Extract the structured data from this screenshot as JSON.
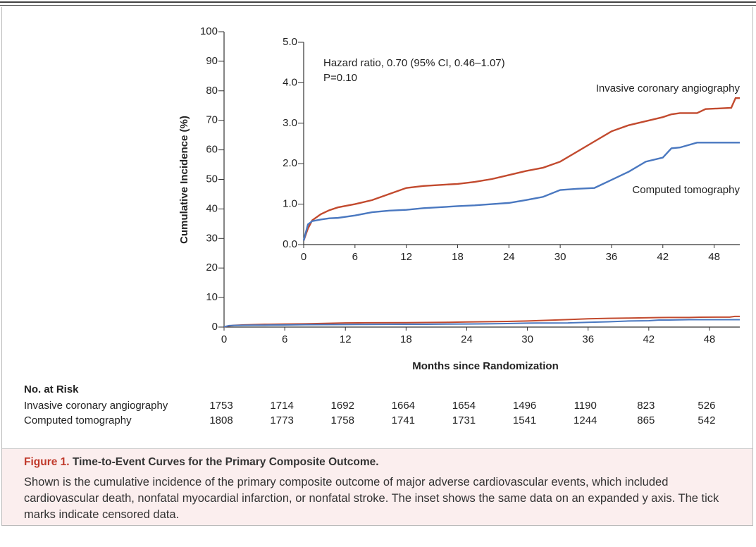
{
  "chart_data": [
    {
      "type": "line",
      "ylabel": "Cumulative Incidence (%)",
      "xlabel": "Months since Randomization",
      "xlim": [
        0,
        51
      ],
      "ylim": [
        0,
        100
      ],
      "xticks": [
        0,
        6,
        12,
        18,
        24,
        30,
        36,
        42,
        48
      ],
      "yticks": [
        0,
        10,
        20,
        30,
        40,
        50,
        60,
        70,
        80,
        90,
        100
      ],
      "x": [
        0,
        0.5,
        1,
        2,
        3,
        4,
        6,
        8,
        10,
        12,
        14,
        18,
        20,
        22,
        24,
        26,
        28,
        30,
        32,
        34,
        36,
        38,
        40,
        42,
        43,
        44,
        46,
        47,
        50,
        50.5,
        51
      ],
      "series": [
        {
          "name": "Invasive coronary angiography",
          "color": "#c24a2e",
          "values": [
            0.1,
            0.4,
            0.6,
            0.75,
            0.85,
            0.92,
            1.0,
            1.1,
            1.25,
            1.4,
            1.45,
            1.5,
            1.55,
            1.62,
            1.72,
            1.82,
            1.9,
            2.05,
            2.3,
            2.55,
            2.8,
            2.95,
            3.05,
            3.15,
            3.22,
            3.25,
            3.25,
            3.35,
            3.38,
            3.62,
            3.62
          ]
        },
        {
          "name": "Computed tomography",
          "color": "#4a78c0",
          "values": [
            0.1,
            0.5,
            0.58,
            0.62,
            0.65,
            0.66,
            0.72,
            0.8,
            0.84,
            0.86,
            0.9,
            0.95,
            0.97,
            1.0,
            1.03,
            1.1,
            1.18,
            1.35,
            1.38,
            1.4,
            1.6,
            1.8,
            2.05,
            2.15,
            2.38,
            2.4,
            2.52,
            2.52,
            2.52,
            2.52,
            2.52
          ]
        }
      ]
    },
    {
      "type": "inset",
      "annotations": [
        "Hazard ratio, 0.70 (95% CI, 0.46–1.07)",
        "P=0.10"
      ],
      "xlim": [
        0,
        51
      ],
      "ylim": [
        0,
        5
      ],
      "xticks": [
        0,
        6,
        12,
        18,
        24,
        30,
        36,
        42,
        48
      ],
      "yticks": [
        {
          "value": 0,
          "label": "0.0"
        },
        {
          "value": 1,
          "label": "1.0"
        },
        {
          "value": 2,
          "label": "2.0"
        },
        {
          "value": 3,
          "label": "3.0"
        },
        {
          "value": 4,
          "label": "4.0"
        },
        {
          "value": 5,
          "label": "5.0"
        }
      ]
    }
  ],
  "risk_table": {
    "title": "No. at Risk",
    "rows": [
      {
        "values": [
          1753,
          1714,
          1692,
          1664,
          1654,
          1496,
          1190,
          823,
          526
        ]
      },
      {
        "values": [
          1808,
          1773,
          1758,
          1741,
          1731,
          1541,
          1244,
          865,
          542
        ]
      }
    ]
  },
  "caption": {
    "label": "Figure 1.",
    "title": "Time-to-Event Curves for the Primary Composite Outcome.",
    "text": "Shown is the cumulative incidence of the primary composite outcome of major adverse cardiovascular events, which included cardiovascular death, nonfatal myocardial infarction, or nonfatal stroke. The inset shows the same data on an expanded y axis. The tick marks indicate censored data."
  }
}
